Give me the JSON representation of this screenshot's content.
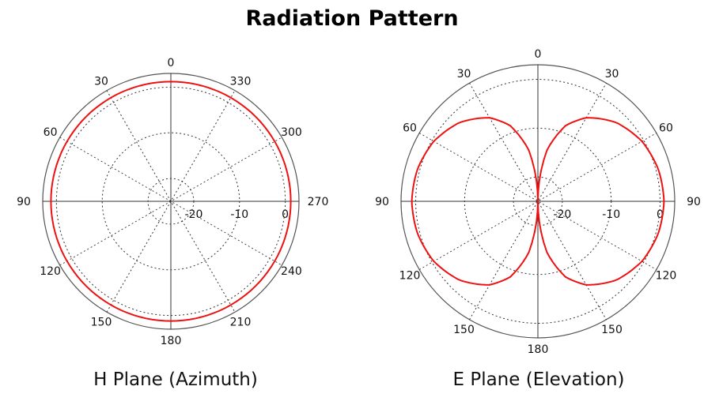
{
  "title": "Radiation Pattern",
  "colors": {
    "trace": "#ee1111",
    "grid": "#333333",
    "outer_ring": "#555555",
    "axis": "#333333"
  },
  "chart_data": [
    {
      "type": "polar",
      "name": "H Plane (Azimuth)",
      "caption": "H Plane (Azimuth)",
      "angle_labels": [
        "0",
        "330",
        "300",
        "270",
        "240",
        "210",
        "180",
        "150",
        "120",
        "90",
        "60",
        "30"
      ],
      "angle_direction": "counterclockwise, 0 at top",
      "radial_tick_labels": [
        "-20",
        "-10",
        "0"
      ],
      "r_unit": "dB",
      "rlim": [
        -25,
        3
      ],
      "grid_rings_db": [
        -20,
        -10,
        0
      ],
      "series": [
        {
          "pattern": "omnidirectional",
          "gain_db": 1.2,
          "theta_deg": [
            0,
            30,
            60,
            90,
            120,
            150,
            180,
            210,
            240,
            270,
            300,
            330
          ],
          "r_db": [
            1.2,
            1.2,
            1.2,
            1.2,
            1.2,
            1.2,
            1.2,
            1.2,
            1.2,
            1.2,
            1.2,
            1.2
          ]
        }
      ]
    },
    {
      "type": "polar",
      "name": "E Plane (Elevation)",
      "caption": "E Plane (Elevation)",
      "angle_labels_left": [
        "0",
        "30",
        "60",
        "90",
        "120",
        "150",
        "180"
      ],
      "angle_labels_right": [
        "30",
        "60",
        "90",
        "120",
        "150"
      ],
      "angle_direction": "symmetric, 0 at top and bottom 180",
      "radial_tick_labels": [
        "-20",
        "-10",
        "0"
      ],
      "r_unit": "dB",
      "rlim": [
        -25,
        3
      ],
      "grid_rings_db": [
        -20,
        -10,
        0
      ],
      "series": [
        {
          "pattern": "figure-eight",
          "peak_gain_db": 0.8,
          "null_angles_deg": [
            0,
            180
          ],
          "theta_deg": [
            0,
            10,
            20,
            30,
            45,
            60,
            75,
            90
          ],
          "r_db": [
            -25,
            -14.4,
            -8.5,
            -5.2,
            -2.2,
            -0.4,
            0.5,
            0.8
          ]
        }
      ]
    }
  ]
}
